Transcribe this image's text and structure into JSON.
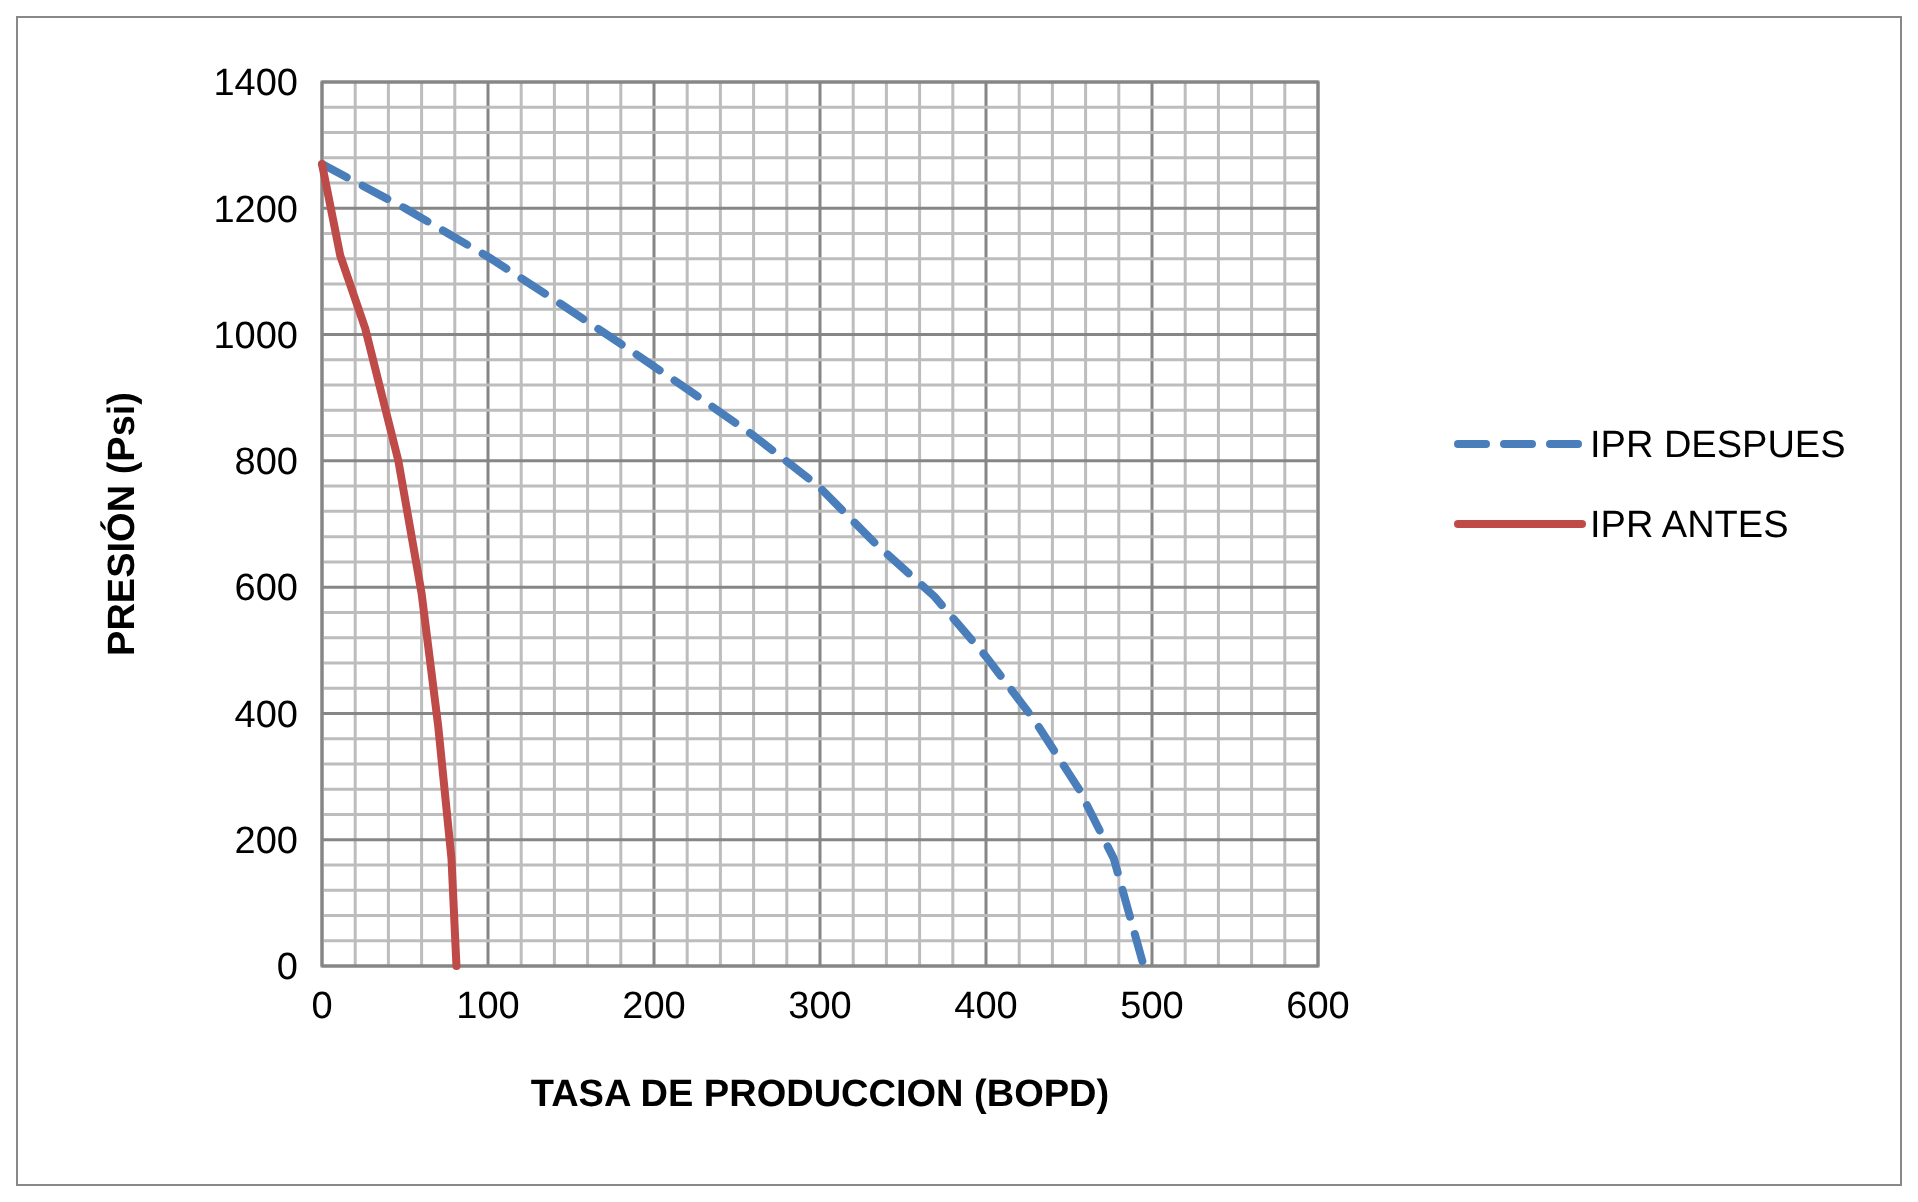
{
  "chart_data": {
    "type": "line",
    "xlabel": "TASA DE PRODUCCION (BOPD)",
    "ylabel": "PRESIÓN (Psi)",
    "xlim": [
      0,
      600
    ],
    "ylim": [
      0,
      1400
    ],
    "xticks": [
      0,
      {
        "value": 20,
        "label": null
      },
      {
        "value": 40,
        "label": null
      },
      {
        "value": 60,
        "label": null
      },
      {
        "value": 80,
        "label": null
      },
      100,
      {
        "value": 120,
        "label": null
      },
      {
        "value": 140,
        "label": null
      },
      {
        "value": 160,
        "label": null
      },
      {
        "value": 180,
        "label": null
      },
      200,
      {
        "value": 220,
        "label": null
      },
      {
        "value": 240,
        "label": null
      },
      {
        "value": 260,
        "label": null
      },
      {
        "value": 280,
        "label": null
      },
      300,
      {
        "value": 320,
        "label": null
      },
      {
        "value": 340,
        "label": null
      },
      {
        "value": 360,
        "label": null
      },
      {
        "value": 380,
        "label": null
      },
      400,
      {
        "value": 420,
        "label": null
      },
      {
        "value": 440,
        "label": null
      },
      {
        "value": 460,
        "label": null
      },
      {
        "value": 480,
        "label": null
      },
      500,
      {
        "value": 520,
        "label": null
      },
      {
        "value": 540,
        "label": null
      },
      {
        "value": 560,
        "label": null
      },
      {
        "value": 580,
        "label": null
      },
      600
    ],
    "yticks": [
      0,
      {
        "value": 40,
        "label": null
      },
      {
        "value": 80,
        "label": null
      },
      {
        "value": 120,
        "label": null
      },
      {
        "value": 160,
        "label": null
      },
      200,
      {
        "value": 240,
        "label": null
      },
      {
        "value": 280,
        "label": null
      },
      {
        "value": 320,
        "label": null
      },
      {
        "value": 360,
        "label": null
      },
      400,
      {
        "value": 440,
        "label": null
      },
      {
        "value": 480,
        "label": null
      },
      {
        "value": 520,
        "label": null
      },
      {
        "value": 560,
        "label": null
      },
      600,
      {
        "value": 640,
        "label": null
      },
      {
        "value": 680,
        "label": null
      },
      {
        "value": 720,
        "label": null
      },
      {
        "value": 760,
        "label": null
      },
      800,
      {
        "value": 840,
        "label": null
      },
      {
        "value": 880,
        "label": null
      },
      {
        "value": 920,
        "label": null
      },
      {
        "value": 960,
        "label": null
      },
      1000,
      {
        "value": 1040,
        "label": null
      },
      {
        "value": 1080,
        "label": null
      },
      {
        "value": 1120,
        "label": null
      },
      {
        "value": 1160,
        "label": null
      },
      1200,
      {
        "value": 1240,
        "label": null
      },
      {
        "value": 1280,
        "label": null
      },
      {
        "value": 1320,
        "label": null
      },
      {
        "value": 1360,
        "label": null
      },
      1400
    ],
    "grid": true,
    "legend": "right",
    "marker": "none",
    "series": [
      {
        "name": "IPR DESPUES",
        "color": "#4a7ebb",
        "line_style": "dashed",
        "x": [
          0,
          50,
          102,
          143,
          183,
          222,
          260,
          299,
          333,
          369,
          400,
          429,
          456,
          477,
          495
        ],
        "values": [
          1270,
          1200,
          1120,
          1050,
          980,
          910,
          840,
          760,
          670,
          585,
          490,
          390,
          280,
          170,
          0
        ]
      },
      {
        "name": "IPR ANTES",
        "color": "#be4b48",
        "line_style": "solid",
        "x": [
          0,
          11,
          26,
          46,
          60,
          70,
          78,
          81
        ],
        "values": [
          1270,
          1125,
          1010,
          800,
          590,
          380,
          170,
          0
        ]
      }
    ]
  }
}
